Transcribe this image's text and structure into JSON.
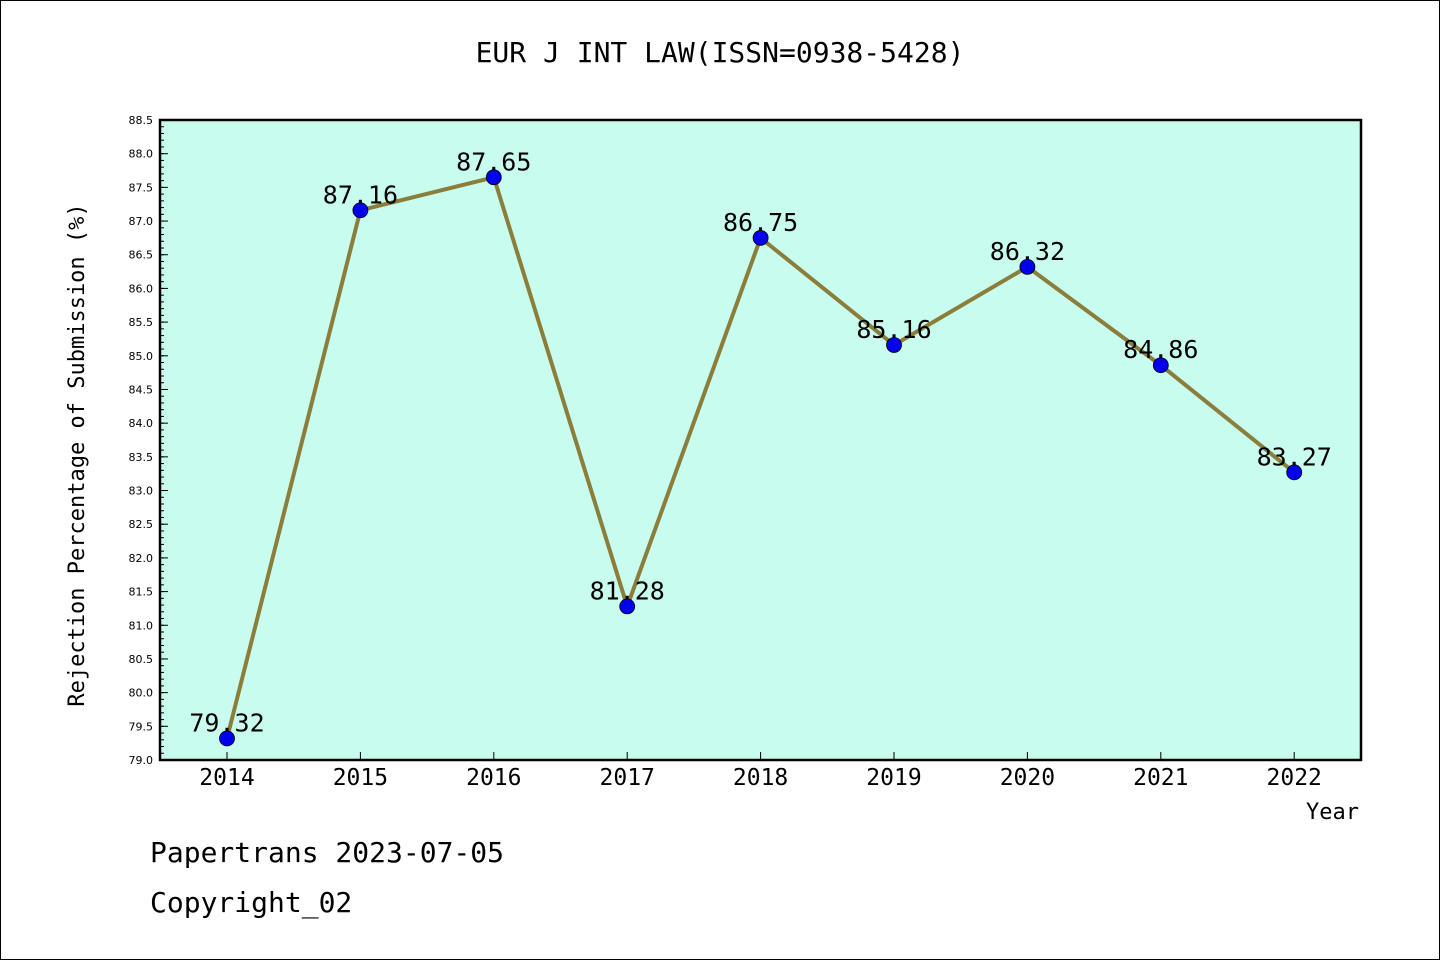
{
  "title": "EUR J INT LAW(ISSN=0938-5428)",
  "footer": {
    "line1": "Papertrans 2023-07-05",
    "line2": "Copyright_02"
  },
  "colors": {
    "plot_background": "#c8fcee",
    "line": "#8b7d3a",
    "marker": "#0000ee"
  },
  "chart_data": {
    "type": "line",
    "title": "EUR J INT LAW(ISSN=0938-5428)",
    "xlabel": "Year",
    "ylabel": "Rejection Percentage of Submission (%)",
    "categories": [
      "2014",
      "2015",
      "2016",
      "2017",
      "2018",
      "2019",
      "2020",
      "2021",
      "2022"
    ],
    "values": [
      79.32,
      87.16,
      87.65,
      81.28,
      86.75,
      85.16,
      86.32,
      84.86,
      83.27
    ],
    "data_labels": [
      "79.32",
      "87.16",
      "87.65",
      "81.28",
      "86.75",
      "85.16",
      "86.32",
      "84.86",
      "83.27"
    ],
    "ylim": [
      79.0,
      88.5
    ],
    "yticks": [
      "79.0",
      "79.5",
      "80.0",
      "80.5",
      "81.0",
      "81.5",
      "82.0",
      "82.5",
      "83.0",
      "83.5",
      "84.0",
      "84.5",
      "85.0",
      "85.5",
      "86.0",
      "86.5",
      "87.0",
      "87.5",
      "88.0",
      "88.5"
    ],
    "grid": false,
    "legend": "none"
  }
}
